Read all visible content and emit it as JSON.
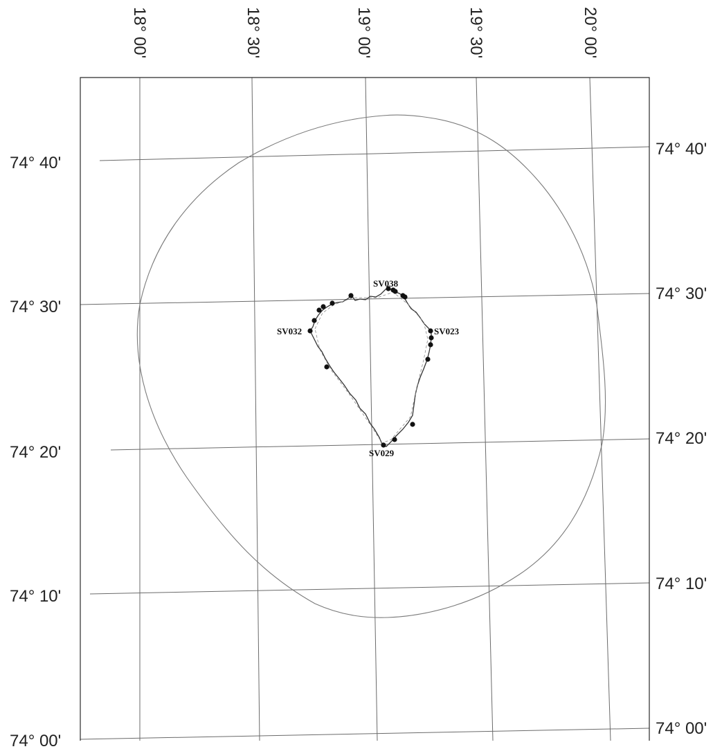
{
  "map": {
    "longitude_labels": [
      {
        "id": "lon-18-00",
        "text": "18° 00'"
      },
      {
        "id": "lon-18-30",
        "text": "18° 30'"
      },
      {
        "id": "lon-19-00",
        "text": "19° 00'"
      },
      {
        "id": "lon-19-30",
        "text": "19° 30'"
      },
      {
        "id": "lon-20-00",
        "text": "20° 00'"
      }
    ],
    "latitude_labels_left": [
      {
        "id": "lat-74-40",
        "text": "74° 40'"
      },
      {
        "id": "lat-74-30",
        "text": "74° 30'"
      },
      {
        "id": "lat-74-20",
        "text": "74° 20'"
      },
      {
        "id": "lat-74-10",
        "text": "74° 10'"
      },
      {
        "id": "lat-74-00",
        "text": "74° 00'"
      }
    ],
    "latitude_labels_right": [
      {
        "id": "lat-74-40",
        "text": "74° 40'"
      },
      {
        "id": "lat-74-30",
        "text": "74° 30'"
      },
      {
        "id": "lat-74-20",
        "text": "74° 20'"
      },
      {
        "id": "lat-74-10",
        "text": "74° 10'"
      },
      {
        "id": "lat-74-00",
        "text": "74° 00'"
      }
    ],
    "station_labels": [
      {
        "id": "SV038",
        "text": "SV038"
      },
      {
        "id": "SV023",
        "text": "SV023"
      },
      {
        "id": "SV032",
        "text": "SV032"
      },
      {
        "id": "SV029",
        "text": "SV029"
      }
    ],
    "station_count": 19
  }
}
